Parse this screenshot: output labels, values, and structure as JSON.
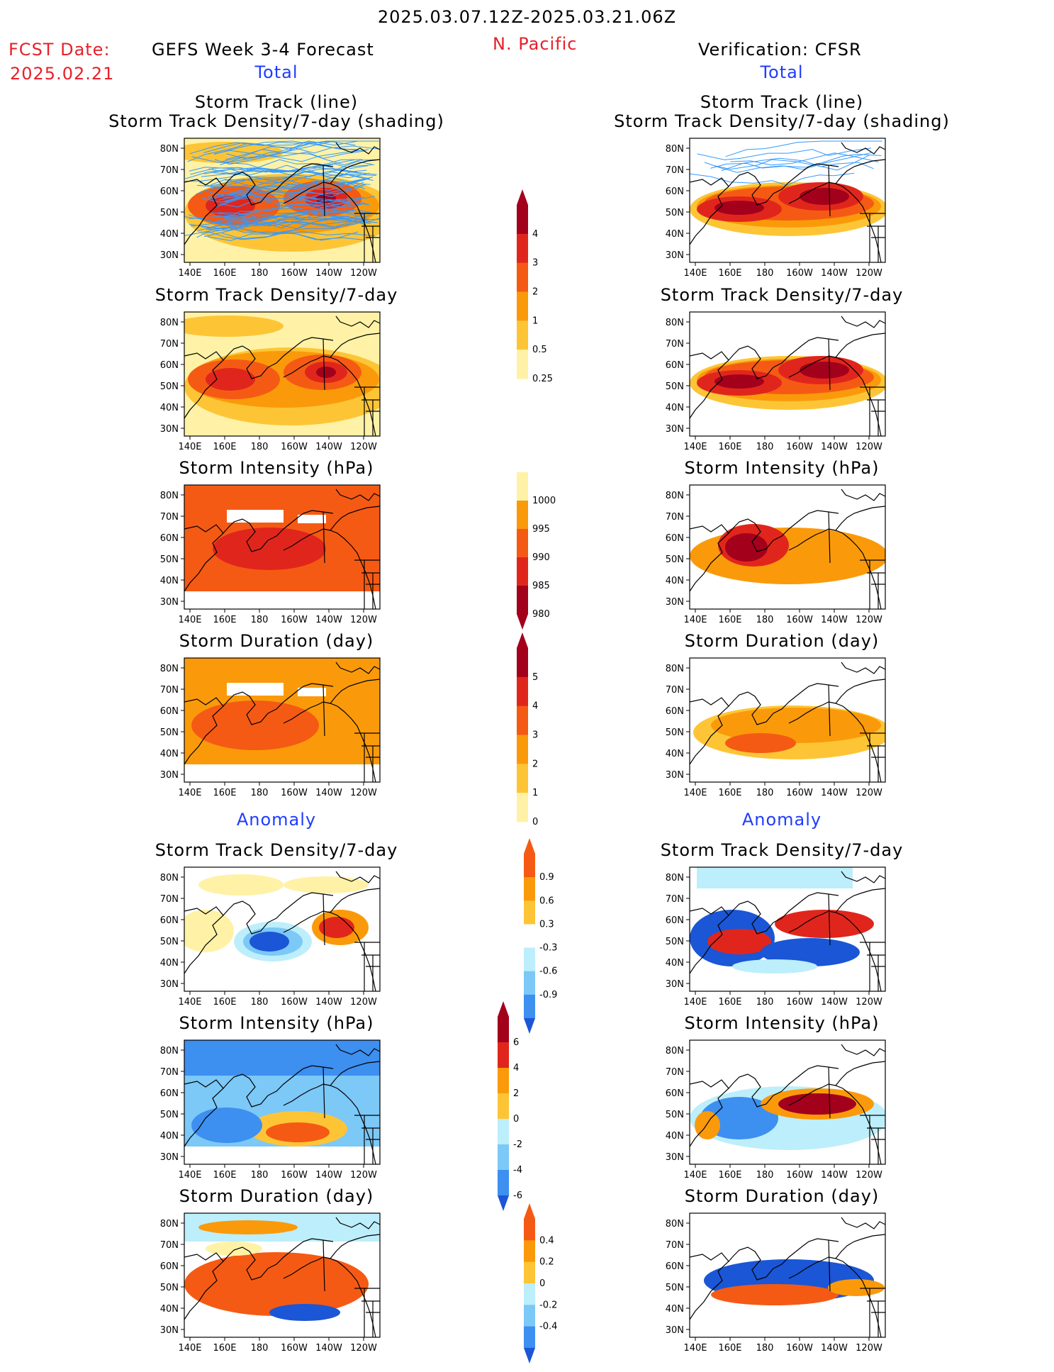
{
  "header": {
    "date_range": "2025.03.07.12Z-2025.03.21.06Z",
    "fcst_label": "FCST Date:",
    "fcst_date": "2025.02.21",
    "left_title": "GEFS Week 3-4 Forecast",
    "region": "N. Pacific",
    "right_title": "Verification: CFSR",
    "total_label": "Total",
    "anomaly_label": "Anomaly"
  },
  "panel_titles": {
    "track_line": "Storm Track (line)",
    "track_shading": "Storm Track Density/7-day (shading)",
    "density": "Storm Track Density/7-day",
    "intensity": "Storm Intensity (hPa)",
    "duration": "Storm Duration (day)"
  },
  "axes": {
    "x_ticks": [
      "140E",
      "160E",
      "180",
      "160W",
      "140W",
      "120W"
    ],
    "y_ticks": [
      "80N",
      "70N",
      "60N",
      "50N",
      "40N",
      "30N"
    ]
  },
  "colorbars": {
    "density_total": [
      "4",
      "3",
      "2",
      "1",
      "0.5",
      "0.25"
    ],
    "intensity_total": [
      "1000",
      "995",
      "990",
      "985",
      "980"
    ],
    "duration_total": [
      "5",
      "4",
      "3",
      "2",
      "1",
      "0"
    ],
    "density_anom": [
      "0.9",
      "0.6",
      "0.3",
      "-0.3",
      "-0.6",
      "-0.9"
    ],
    "intensity_anom": [
      "6",
      "4",
      "2",
      "0",
      "-2",
      "-4",
      "-6"
    ],
    "duration_anom": [
      "0.4",
      "0.2",
      "0",
      "-0.2",
      "-0.4"
    ]
  },
  "colors": {
    "dark_red": "#a3001c",
    "red": "#e0261c",
    "orange_red": "#f55a14",
    "orange": "#fa9a0a",
    "gold": "#fdc536",
    "pale_yellow": "#fff2a6",
    "pale_blue": "#bdeefb",
    "light_blue": "#7cc8f7",
    "mid_blue": "#3d8ff0",
    "blue": "#1a56d6",
    "track_line": "#3399ff"
  }
}
